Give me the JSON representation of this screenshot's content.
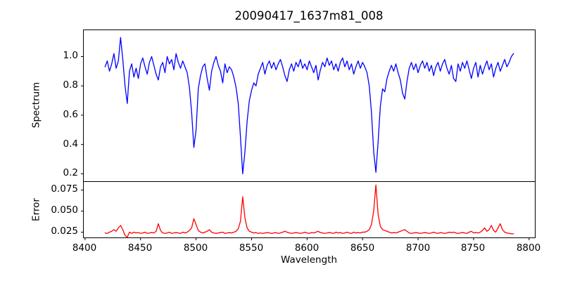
{
  "chart_data": {
    "type": "line",
    "title": "20090417_1637m81_008",
    "xlabel": "Wavelength",
    "grid": false,
    "legend": "none",
    "xlim": [
      8398.5,
      8805.5
    ],
    "xticks": [
      8400,
      8450,
      8500,
      8550,
      8600,
      8650,
      8700,
      8750,
      8800
    ],
    "x": [
      8418,
      8420,
      8422,
      8424,
      8426,
      8428,
      8430,
      8432,
      8434,
      8436,
      8438,
      8440,
      8442,
      8444,
      8446,
      8448,
      8450,
      8452,
      8454,
      8456,
      8458,
      8460,
      8462,
      8464,
      8466,
      8468,
      8470,
      8472,
      8474,
      8476,
      8478,
      8480,
      8482,
      8484,
      8486,
      8488,
      8490,
      8492,
      8494,
      8496,
      8498,
      8500,
      8502,
      8504,
      8506,
      8508,
      8510,
      8512,
      8514,
      8516,
      8518,
      8520,
      8522,
      8524,
      8526,
      8528,
      8530,
      8532,
      8534,
      8536,
      8538,
      8540,
      8542,
      8544,
      8546,
      8548,
      8550,
      8552,
      8554,
      8556,
      8558,
      8560,
      8562,
      8564,
      8566,
      8568,
      8570,
      8572,
      8574,
      8576,
      8578,
      8580,
      8582,
      8584,
      8586,
      8588,
      8590,
      8592,
      8594,
      8596,
      8598,
      8600,
      8602,
      8604,
      8606,
      8608,
      8610,
      8612,
      8614,
      8616,
      8618,
      8620,
      8622,
      8624,
      8626,
      8628,
      8630,
      8632,
      8634,
      8636,
      8638,
      8640,
      8642,
      8644,
      8646,
      8648,
      8650,
      8652,
      8654,
      8656,
      8658,
      8660,
      8662,
      8664,
      8666,
      8668,
      8670,
      8672,
      8674,
      8676,
      8678,
      8680,
      8682,
      8684,
      8686,
      8688,
      8690,
      8692,
      8694,
      8696,
      8698,
      8700,
      8702,
      8704,
      8706,
      8708,
      8710,
      8712,
      8714,
      8716,
      8718,
      8720,
      8722,
      8724,
      8726,
      8728,
      8730,
      8732,
      8734,
      8736,
      8738,
      8740,
      8742,
      8744,
      8746,
      8748,
      8750,
      8752,
      8754,
      8756,
      8758,
      8760,
      8762,
      8764,
      8766,
      8768,
      8770,
      8772,
      8774,
      8776,
      8778,
      8780,
      8782,
      8784,
      8786
    ],
    "panels": [
      {
        "name": "spectrum",
        "ylabel": "Spectrum",
        "color": "#0000ff",
        "ylim": [
          0.147,
          1.182
        ],
        "ytick_labels": [
          "1.0",
          "0.8",
          "0.6",
          "0.4",
          "0.2"
        ],
        "ytick_values": [
          1.0,
          0.8,
          0.6,
          0.4,
          0.2
        ],
        "absorption_line_centers": [
          8498,
          8542,
          8662
        ],
        "values": [
          0.93,
          0.97,
          0.9,
          0.95,
          1.02,
          0.92,
          0.97,
          1.13,
          0.98,
          0.8,
          0.68,
          0.9,
          0.95,
          0.86,
          0.92,
          0.85,
          0.95,
          0.99,
          0.93,
          0.88,
          0.96,
          1.0,
          0.94,
          0.88,
          0.84,
          0.93,
          0.96,
          0.89,
          1.0,
          0.95,
          0.98,
          0.91,
          1.02,
          0.96,
          0.92,
          0.97,
          0.93,
          0.89,
          0.79,
          0.62,
          0.38,
          0.5,
          0.78,
          0.87,
          0.93,
          0.95,
          0.85,
          0.77,
          0.9,
          0.96,
          1.0,
          0.94,
          0.9,
          0.82,
          0.95,
          0.89,
          0.93,
          0.91,
          0.86,
          0.79,
          0.68,
          0.45,
          0.2,
          0.35,
          0.56,
          0.7,
          0.77,
          0.82,
          0.8,
          0.88,
          0.92,
          0.96,
          0.88,
          0.94,
          0.97,
          0.92,
          0.96,
          0.91,
          0.95,
          0.98,
          0.93,
          0.87,
          0.83,
          0.91,
          0.95,
          0.9,
          0.96,
          0.93,
          0.98,
          0.92,
          0.95,
          0.91,
          0.97,
          0.93,
          0.89,
          0.94,
          0.84,
          0.91,
          0.96,
          0.93,
          0.99,
          0.94,
          0.97,
          0.91,
          0.95,
          0.9,
          0.96,
          0.99,
          0.93,
          0.97,
          0.91,
          0.95,
          0.88,
          0.93,
          0.97,
          0.92,
          0.96,
          0.93,
          0.89,
          0.8,
          0.62,
          0.35,
          0.21,
          0.42,
          0.66,
          0.78,
          0.76,
          0.85,
          0.9,
          0.94,
          0.9,
          0.95,
          0.89,
          0.84,
          0.75,
          0.71,
          0.83,
          0.92,
          0.96,
          0.91,
          0.95,
          0.89,
          0.94,
          0.97,
          0.92,
          0.96,
          0.9,
          0.94,
          0.87,
          0.93,
          0.96,
          0.9,
          0.95,
          0.98,
          0.92,
          0.88,
          0.94,
          0.85,
          0.83,
          0.95,
          0.9,
          0.96,
          0.92,
          0.97,
          0.91,
          0.85,
          0.92,
          0.96,
          0.86,
          0.94,
          0.88,
          0.93,
          0.97,
          0.91,
          0.95,
          0.86,
          0.92,
          0.96,
          0.9,
          0.94,
          0.98,
          0.93,
          0.96,
          1.0,
          1.02
        ]
      },
      {
        "name": "error",
        "ylabel": "Error",
        "color": "#ff0000",
        "ylim": [
          0.0183,
          0.085
        ],
        "ytick_labels": [
          "0.075",
          "0.050",
          "0.025"
        ],
        "ytick_values": [
          0.075,
          0.05,
          0.025
        ],
        "values": [
          0.024,
          0.0235,
          0.025,
          0.026,
          0.028,
          0.026,
          0.03,
          0.033,
          0.028,
          0.021,
          0.019,
          0.025,
          0.0235,
          0.025,
          0.024,
          0.0245,
          0.0235,
          0.024,
          0.025,
          0.0235,
          0.024,
          0.0245,
          0.024,
          0.026,
          0.035,
          0.027,
          0.024,
          0.0235,
          0.024,
          0.025,
          0.0235,
          0.024,
          0.0245,
          0.024,
          0.0235,
          0.025,
          0.024,
          0.025,
          0.027,
          0.03,
          0.041,
          0.034,
          0.027,
          0.025,
          0.024,
          0.025,
          0.026,
          0.028,
          0.025,
          0.024,
          0.0235,
          0.024,
          0.0245,
          0.025,
          0.0235,
          0.024,
          0.0245,
          0.024,
          0.025,
          0.026,
          0.029,
          0.038,
          0.067,
          0.042,
          0.03,
          0.026,
          0.025,
          0.024,
          0.0245,
          0.0235,
          0.024,
          0.0235,
          0.024,
          0.0245,
          0.024,
          0.0235,
          0.024,
          0.0245,
          0.0235,
          0.024,
          0.025,
          0.026,
          0.025,
          0.024,
          0.0235,
          0.024,
          0.0245,
          0.024,
          0.0235,
          0.024,
          0.025,
          0.024,
          0.0235,
          0.0245,
          0.024,
          0.025,
          0.026,
          0.0245,
          0.024,
          0.0235,
          0.024,
          0.0245,
          0.024,
          0.0235,
          0.025,
          0.024,
          0.0245,
          0.0235,
          0.024,
          0.025,
          0.024,
          0.0235,
          0.025,
          0.024,
          0.0245,
          0.024,
          0.025,
          0.025,
          0.026,
          0.028,
          0.034,
          0.05,
          0.081,
          0.046,
          0.032,
          0.028,
          0.027,
          0.026,
          0.025,
          0.024,
          0.0245,
          0.024,
          0.025,
          0.026,
          0.027,
          0.028,
          0.026,
          0.024,
          0.0235,
          0.024,
          0.0245,
          0.024,
          0.0235,
          0.024,
          0.0245,
          0.024,
          0.0235,
          0.024,
          0.025,
          0.024,
          0.0235,
          0.0245,
          0.024,
          0.0235,
          0.024,
          0.025,
          0.0245,
          0.025,
          0.024,
          0.0235,
          0.024,
          0.0245,
          0.024,
          0.0235,
          0.025,
          0.026,
          0.024,
          0.0245,
          0.024,
          0.025,
          0.027,
          0.03,
          0.026,
          0.028,
          0.033,
          0.027,
          0.025,
          0.03,
          0.035,
          0.028,
          0.025,
          0.024,
          0.0235,
          0.023,
          0.023
        ]
      }
    ]
  },
  "style": {
    "background": "#ffffff",
    "spine_color": "#000000",
    "text_color": "#000000",
    "spectrum_line_color": "#0000ff",
    "error_line_color": "#ff0000"
  }
}
